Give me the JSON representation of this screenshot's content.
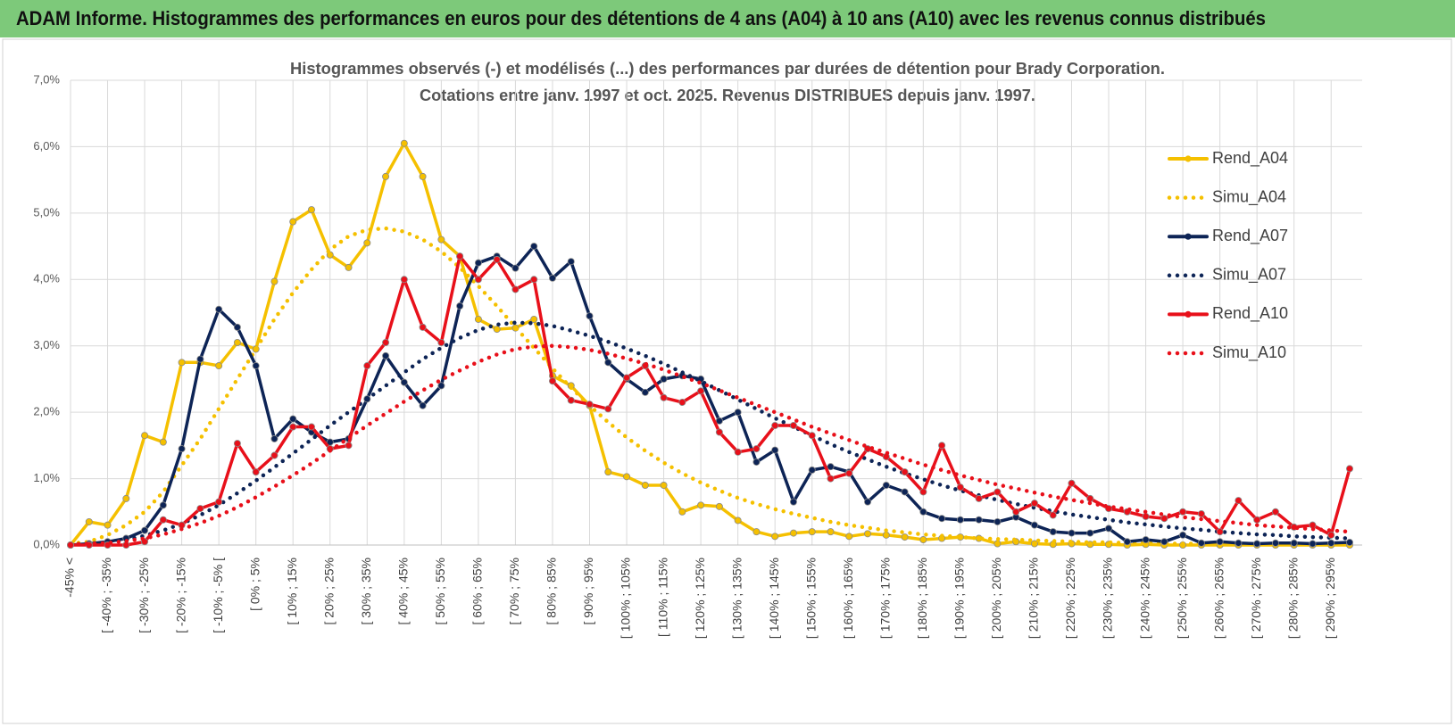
{
  "chart_data": {
    "type": "line",
    "title": "ADAM Informe. Histogrammes des performances en euros pour des détentions de 4 ans (A04) à 10 ans (A10) avec les revenus connus distribués",
    "subtitle": [
      "Histogrammes observés (-) et modélisés (...) des performances par durées de détention pour Brady Corporation.",
      "Cotations entre janv. 1997 et oct. 2025.  Revenus DISTRIBUES depuis janv. 1997."
    ],
    "categories": [
      "-45% <",
      null,
      "[ -40% ; -35%",
      null,
      "[ -30% ; -25%",
      null,
      "[ -20% ; -15%",
      null,
      "[ -10% ; -5% [",
      null,
      "[ 0% ; 5%",
      null,
      "[ 10% ; 15%",
      null,
      "[ 20% ; 25%",
      null,
      "[ 30% ; 35%",
      null,
      "[ 40% ; 45%",
      null,
      "[ 50% ; 55%",
      null,
      "[ 60% ; 65%",
      null,
      "[ 70% ; 75%",
      null,
      "[ 80% ; 85%",
      null,
      "[ 90% ; 95%",
      null,
      "[ 100% ; 105%",
      null,
      "[ 110% ; 115%",
      null,
      "[ 120% ; 125%",
      null,
      "[ 130% ; 135%",
      null,
      "[ 140% ; 145%",
      null,
      "[ 150% ; 155%",
      null,
      "[ 160% ; 165%",
      null,
      "[ 170% ; 175%",
      null,
      "[ 180% ; 185%",
      null,
      "[ 190% ; 195%",
      null,
      "[ 200% ; 205%",
      null,
      "[ 210% ; 215%",
      null,
      "[ 220% ; 225%",
      null,
      "[ 230% ; 235%",
      null,
      "[ 240% ; 245%",
      null,
      "[ 250% ; 255%",
      null,
      "[ 260% ; 265%",
      null,
      "[ 270% ; 275%",
      null,
      "[ 280% ; 285%",
      null,
      "[ 290% ; 295%",
      null
    ],
    "series": [
      {
        "name": "Rend_A04",
        "color": "#f5c000",
        "style": "solid",
        "values": [
          0,
          0.35,
          0.3,
          0.7,
          1.65,
          1.55,
          2.75,
          2.75,
          2.7,
          3.05,
          2.95,
          3.97,
          4.87,
          5.05,
          4.37,
          4.18,
          4.55,
          5.55,
          6.05,
          5.55,
          4.6,
          4.35,
          3.4,
          3.25,
          3.27,
          3.4,
          2.55,
          2.4,
          2.1,
          1.1,
          1.03,
          0.9,
          0.9,
          0.5,
          0.6,
          0.58,
          0.37,
          0.2,
          0.13,
          0.18,
          0.2,
          0.2,
          0.13,
          0.17,
          0.15,
          0.12,
          0.08,
          0.1,
          0.12,
          0.1,
          0.02,
          0.05,
          0.02,
          0.01,
          0.02,
          0.01,
          0.01,
          0,
          0.01,
          0,
          0,
          0,
          0,
          0,
          0,
          0,
          0,
          0,
          0,
          0
        ]
      },
      {
        "name": "Simu_A04",
        "color": "#f5c000",
        "style": "dotted",
        "values": [
          0.02,
          0.05,
          0.15,
          0.3,
          0.5,
          0.8,
          1.2,
          1.6,
          2.05,
          2.5,
          2.95,
          3.4,
          3.8,
          4.15,
          4.45,
          4.65,
          4.75,
          4.77,
          4.72,
          4.6,
          4.42,
          4.18,
          3.9,
          3.6,
          3.28,
          2.97,
          2.66,
          2.37,
          2.1,
          1.85,
          1.62,
          1.42,
          1.24,
          1.08,
          0.94,
          0.82,
          0.71,
          0.62,
          0.54,
          0.47,
          0.41,
          0.35,
          0.3,
          0.26,
          0.22,
          0.19,
          0.16,
          0.14,
          0.12,
          0.1,
          0.09,
          0.08,
          0.07,
          0.06,
          0.05,
          0.04,
          0.04,
          0.03,
          0.03,
          0.02,
          0.02,
          0.02,
          0.02,
          0.01,
          0.01,
          0.01,
          0.01,
          0.01,
          0.01,
          0.01
        ]
      },
      {
        "name": "Rend_A07",
        "color": "#0d2456",
        "style": "solid",
        "values": [
          0,
          0.02,
          0.05,
          0.1,
          0.22,
          0.6,
          1.45,
          2.8,
          3.55,
          3.28,
          2.7,
          1.6,
          1.9,
          1.7,
          1.55,
          1.6,
          2.2,
          2.85,
          2.45,
          2.1,
          2.4,
          3.6,
          4.25,
          4.35,
          4.17,
          4.5,
          4.02,
          4.27,
          3.45,
          2.75,
          2.5,
          2.3,
          2.5,
          2.55,
          2.5,
          1.87,
          2.0,
          1.25,
          1.43,
          0.65,
          1.13,
          1.18,
          1.1,
          0.65,
          0.9,
          0.8,
          0.5,
          0.4,
          0.38,
          0.38,
          0.35,
          0.42,
          0.3,
          0.2,
          0.18,
          0.18,
          0.25,
          0.05,
          0.08,
          0.05,
          0.15,
          0.03,
          0.05,
          0.03,
          0.02,
          0.03,
          0.03,
          0.02,
          0.03,
          0.04
        ]
      },
      {
        "name": "Simu_A07",
        "color": "#0d2456",
        "style": "dotted",
        "values": [
          0.01,
          0.02,
          0.04,
          0.08,
          0.14,
          0.22,
          0.32,
          0.45,
          0.6,
          0.78,
          0.97,
          1.17,
          1.38,
          1.59,
          1.8,
          2.0,
          2.2,
          2.4,
          2.6,
          2.8,
          2.97,
          3.12,
          3.24,
          3.32,
          3.35,
          3.34,
          3.3,
          3.23,
          3.15,
          3.06,
          2.96,
          2.85,
          2.73,
          2.6,
          2.47,
          2.33,
          2.19,
          2.05,
          1.91,
          1.78,
          1.65,
          1.52,
          1.4,
          1.29,
          1.18,
          1.08,
          0.99,
          0.9,
          0.82,
          0.75,
          0.68,
          0.62,
          0.56,
          0.51,
          0.46,
          0.42,
          0.38,
          0.34,
          0.31,
          0.28,
          0.25,
          0.23,
          0.2,
          0.18,
          0.16,
          0.15,
          0.13,
          0.12,
          0.11,
          0.1
        ]
      },
      {
        "name": "Rend_A10",
        "color": "#e8101a",
        "style": "solid",
        "values": [
          0,
          0,
          0,
          0,
          0.05,
          0.38,
          0.3,
          0.55,
          0.65,
          1.53,
          1.1,
          1.35,
          1.78,
          1.78,
          1.45,
          1.5,
          2.7,
          3.05,
          4.0,
          3.28,
          3.05,
          4.35,
          4.0,
          4.3,
          3.85,
          4.0,
          2.47,
          2.18,
          2.12,
          2.05,
          2.52,
          2.7,
          2.22,
          2.15,
          2.32,
          1.7,
          1.4,
          1.45,
          1.8,
          1.8,
          1.65,
          1.0,
          1.08,
          1.45,
          1.33,
          1.1,
          0.8,
          1.5,
          0.87,
          0.7,
          0.8,
          0.5,
          0.63,
          0.45,
          0.93,
          0.7,
          0.55,
          0.5,
          0.43,
          0.4,
          0.5,
          0.47,
          0.2,
          0.67,
          0.38,
          0.5,
          0.27,
          0.3,
          0.15,
          1.15
        ]
      },
      {
        "name": "Simu_A10",
        "color": "#e8101a",
        "style": "dotted",
        "values": [
          0.01,
          0.02,
          0.03,
          0.06,
          0.1,
          0.16,
          0.24,
          0.33,
          0.44,
          0.57,
          0.72,
          0.88,
          1.05,
          1.23,
          1.42,
          1.61,
          1.8,
          1.98,
          2.16,
          2.33,
          2.49,
          2.63,
          2.76,
          2.87,
          2.95,
          2.99,
          3.0,
          2.98,
          2.94,
          2.88,
          2.81,
          2.73,
          2.64,
          2.54,
          2.44,
          2.33,
          2.22,
          2.11,
          2.0,
          1.89,
          1.78,
          1.68,
          1.58,
          1.48,
          1.39,
          1.3,
          1.21,
          1.13,
          1.05,
          0.98,
          0.91,
          0.85,
          0.79,
          0.73,
          0.68,
          0.63,
          0.58,
          0.54,
          0.5,
          0.46,
          0.42,
          0.39,
          0.36,
          0.33,
          0.3,
          0.28,
          0.26,
          0.24,
          0.22,
          0.2
        ]
      }
    ],
    "ylim": [
      0,
      7
    ],
    "yticks": [
      {
        "value": 0,
        "label": "0,0%"
      },
      {
        "value": 1,
        "label": "1,0%"
      },
      {
        "value": 2,
        "label": "2,0%"
      },
      {
        "value": 3,
        "label": "3,0%"
      },
      {
        "value": 4,
        "label": "4,0%"
      },
      {
        "value": 5,
        "label": "5,0%"
      },
      {
        "value": 6,
        "label": "6,0%"
      },
      {
        "value": 7,
        "label": "7,0%"
      }
    ],
    "grid": true,
    "legend": "right"
  }
}
